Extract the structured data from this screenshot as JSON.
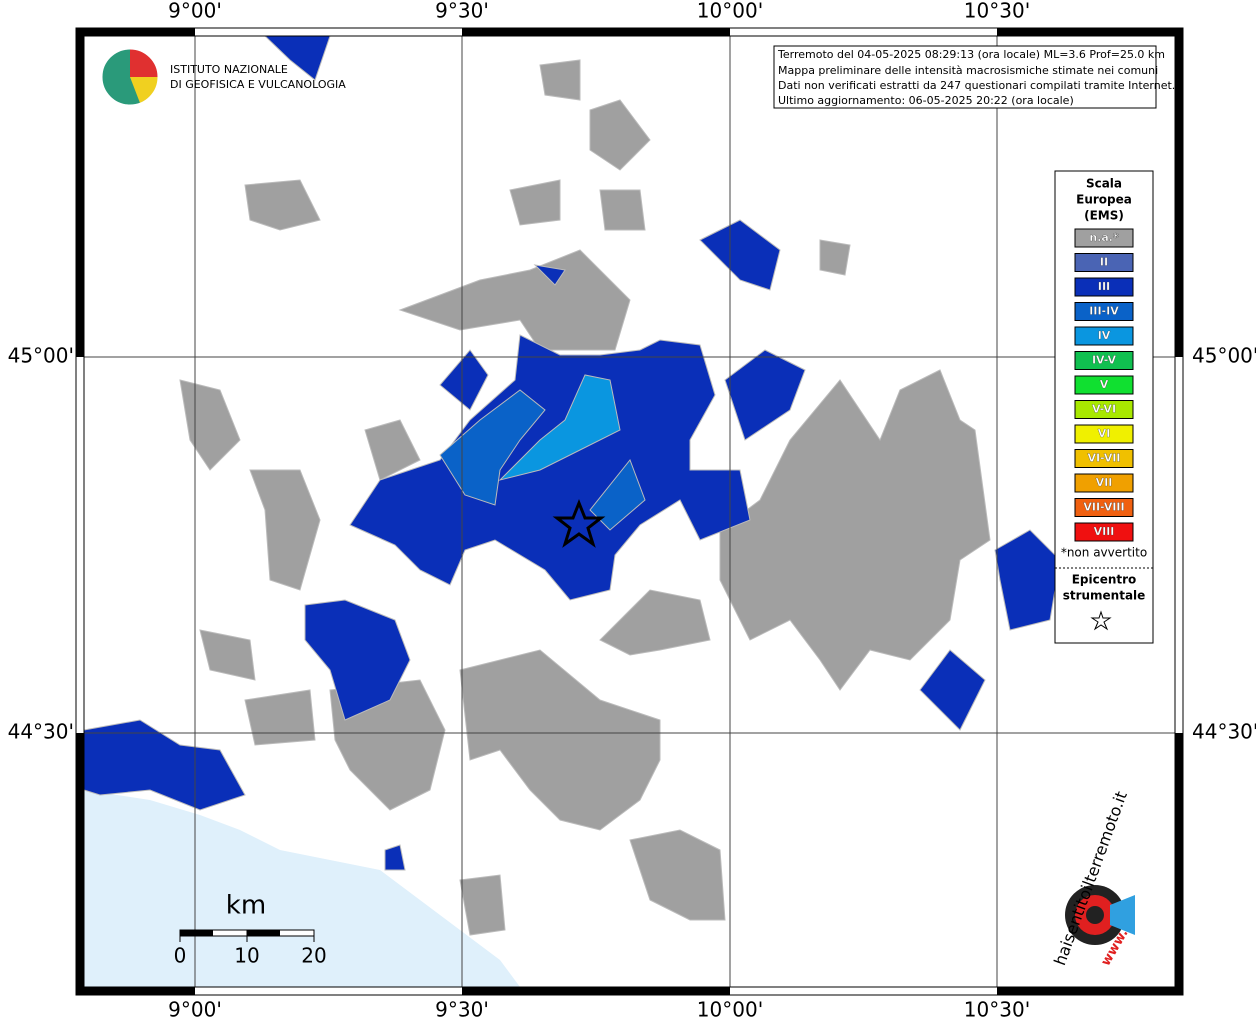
{
  "axes": {
    "top": [
      "9°00'",
      "9°30'",
      "10°00'",
      "10°30'"
    ],
    "bottom": [
      "9°00'",
      "9°30'",
      "10°00'",
      "10°30'"
    ],
    "left": [
      "45°00'",
      "44°30'"
    ],
    "right": [
      "45°00'",
      "44°30'"
    ]
  },
  "info": [
    "Terremoto del 04-05-2025 08:29:13 (ora locale) ML=3.6 Prof=25.0 km",
    "Mappa preliminare delle intensità macrosismiche stimate nei comuni",
    "Dati non verificati estratti da 247 questionari compilati tramite Internet.",
    "Ultimo aggiornamento: 06-05-2025 20:22 (ora locale)"
  ],
  "logo": {
    "line1": "ISTITUTO NAZIONALE",
    "line2": "DI GEOFISICA E VULCANOLOGIA"
  },
  "legend": {
    "title": [
      "Scala",
      "Europea",
      "(EMS)"
    ],
    "classes": [
      {
        "label": "n.a.*",
        "color": "#a0a0a0"
      },
      {
        "label": "II",
        "color": "#4a64b4"
      },
      {
        "label": "III",
        "color": "#0a2fb8"
      },
      {
        "label": "III-IV",
        "color": "#0a62c8"
      },
      {
        "label": "IV",
        "color": "#0a96e0"
      },
      {
        "label": "IV-V",
        "color": "#10c050"
      },
      {
        "label": "V",
        "color": "#10e030"
      },
      {
        "label": "V-VI",
        "color": "#a8e800"
      },
      {
        "label": "VI",
        "color": "#f0f000"
      },
      {
        "label": "VI-VII",
        "color": "#f0c000"
      },
      {
        "label": "VII",
        "color": "#f0a000"
      },
      {
        "label": "VII-VIII",
        "color": "#f06010"
      },
      {
        "label": "VIII",
        "color": "#f01010"
      }
    ],
    "note": "*non avvertito",
    "epicenter": [
      "Epicentro",
      "strumentale"
    ]
  },
  "scale": {
    "unit": "km",
    "ticks": [
      "0",
      "10",
      "20"
    ]
  },
  "badge": {
    "prefix": "www.",
    "url": "haisentitoilterremoto.it"
  }
}
